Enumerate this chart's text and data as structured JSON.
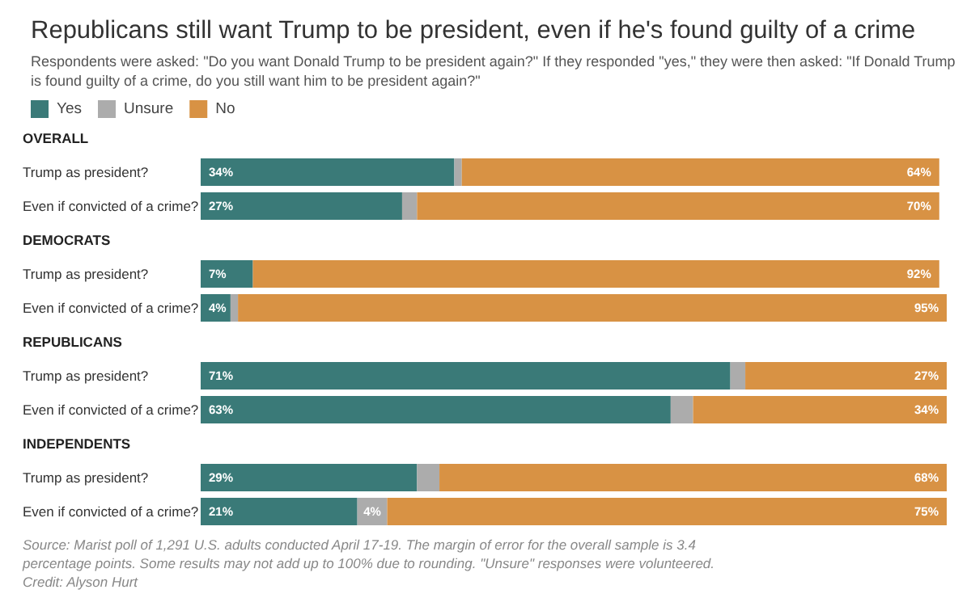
{
  "chart_data": {
    "type": "bar",
    "orientation": "horizontal",
    "stacked": true,
    "title": "Republicans still want Trump to be president, even if he's found guilty of a crime",
    "subtitle": "Respondents were asked: \"Do you want Donald Trump to be president again?\" If they responded \"yes,\" they were then asked: \"If Donald Trump is found guilty of a crime, do you still want him to be president again?\"",
    "categories": [
      "OVERALL",
      "Trump as president?",
      "Even if convicted of a crime?",
      "DEMOCRATS",
      "Trump as president?",
      "Even if convicted of a crime?",
      "REPUBLICANS",
      "Trump as president?",
      "Even if convicted of a crime?",
      "INDEPENDENTS",
      "Trump as president?",
      "Even if convicted of a crime?"
    ],
    "series": [
      {
        "name": "Yes",
        "color": "#3a7a78",
        "values": [
          null,
          34,
          27,
          null,
          7,
          4,
          null,
          71,
          63,
          null,
          29,
          21
        ],
        "value_labels": [
          null,
          "34%",
          "27%",
          null,
          "7%",
          "4%",
          null,
          "71%",
          "63%",
          null,
          "29%",
          "21%"
        ]
      },
      {
        "name": "Unsure",
        "color": "#acacac",
        "values": [
          null,
          1,
          2,
          null,
          0,
          1,
          null,
          2,
          3,
          null,
          3,
          4
        ],
        "value_labels": [
          null,
          null,
          null,
          null,
          null,
          null,
          null,
          null,
          null,
          null,
          null,
          "4%"
        ]
      },
      {
        "name": "No",
        "color": "#d89244",
        "values": [
          null,
          64,
          70,
          null,
          92,
          95,
          null,
          27,
          34,
          null,
          68,
          75
        ],
        "value_labels": [
          null,
          "64%",
          "70%",
          null,
          "92%",
          "95%",
          null,
          "27%",
          "34%",
          null,
          "68%",
          "75%"
        ]
      }
    ],
    "xlim": [
      0,
      100
    ],
    "tick_labels": "y",
    "legend": "top left",
    "annotations": [
      "Source: Marist poll of 1,291 U.S. adults conducted April 17-19. The margin of error for the overall sample is 3.4 percentage points. Some results may not add up to 100% due to rounding. \"Unsure\" responses were volunteered.",
      "Credit: Alyson Hurt"
    ]
  }
}
